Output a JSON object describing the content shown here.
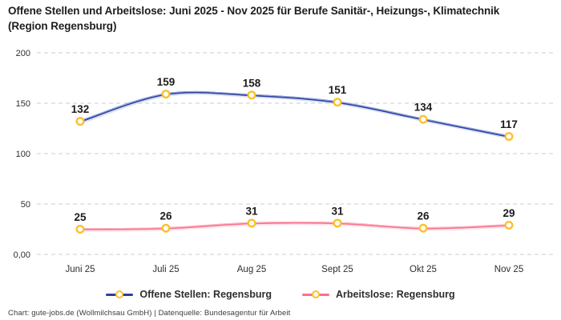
{
  "title": "Offene Stellen und Arbeitslose: Juni 2025 - Nov 2025 für Berufe Sanitär-, Heizungs-, Klimatechnik (Region Regensburg)",
  "footer": "Chart: gute-jobs.de (Wollmilchsau GmbH) | Datenquelle: Bundesagentur für Arbeit",
  "colors": {
    "background": "#ffffff",
    "grid": "#cccccc",
    "title_text": "#1d1d1d",
    "axis_text": "#2e2e2e",
    "value_label_text": "#1c1c1c",
    "marker_stroke": "#fbc12d",
    "marker_fill": "#ffffff"
  },
  "chart_data": {
    "type": "line",
    "title": "Offene Stellen und Arbeitslose: Juni 2025 - Nov 2025 für Berufe Sanitär-, Heizungs-, Klimatechnik (Region Regensburg)",
    "categories": [
      "Juni 25",
      "Juli 25",
      "Aug 25",
      "Sept 25",
      "Okt 25",
      "Nov 25"
    ],
    "series": [
      {
        "name": "Offene Stellen: Regensburg",
        "values": [
          132,
          159,
          158,
          151,
          134,
          117
        ],
        "color": "#2a3f9e",
        "halo_color": "#b9c7ef"
      },
      {
        "name": "Arbeitslose: Regensburg",
        "values": [
          25,
          26,
          31,
          31,
          26,
          29
        ],
        "color": "#f9718b",
        "halo_color": "#fcccd5"
      }
    ],
    "xlabel": "",
    "ylabel": "",
    "ylim": [
      0,
      200
    ],
    "yticks": [
      {
        "value": 0,
        "label": "0,00"
      },
      {
        "value": 50,
        "label": "50"
      },
      {
        "value": 100,
        "label": "100"
      },
      {
        "value": 150,
        "label": "150"
      },
      {
        "value": 200,
        "label": "200"
      }
    ],
    "grid": "horizontal-dashed",
    "line_style": "smooth",
    "markers": "yellow-ring",
    "data_labels": "above-points",
    "legend_position": "bottom"
  }
}
